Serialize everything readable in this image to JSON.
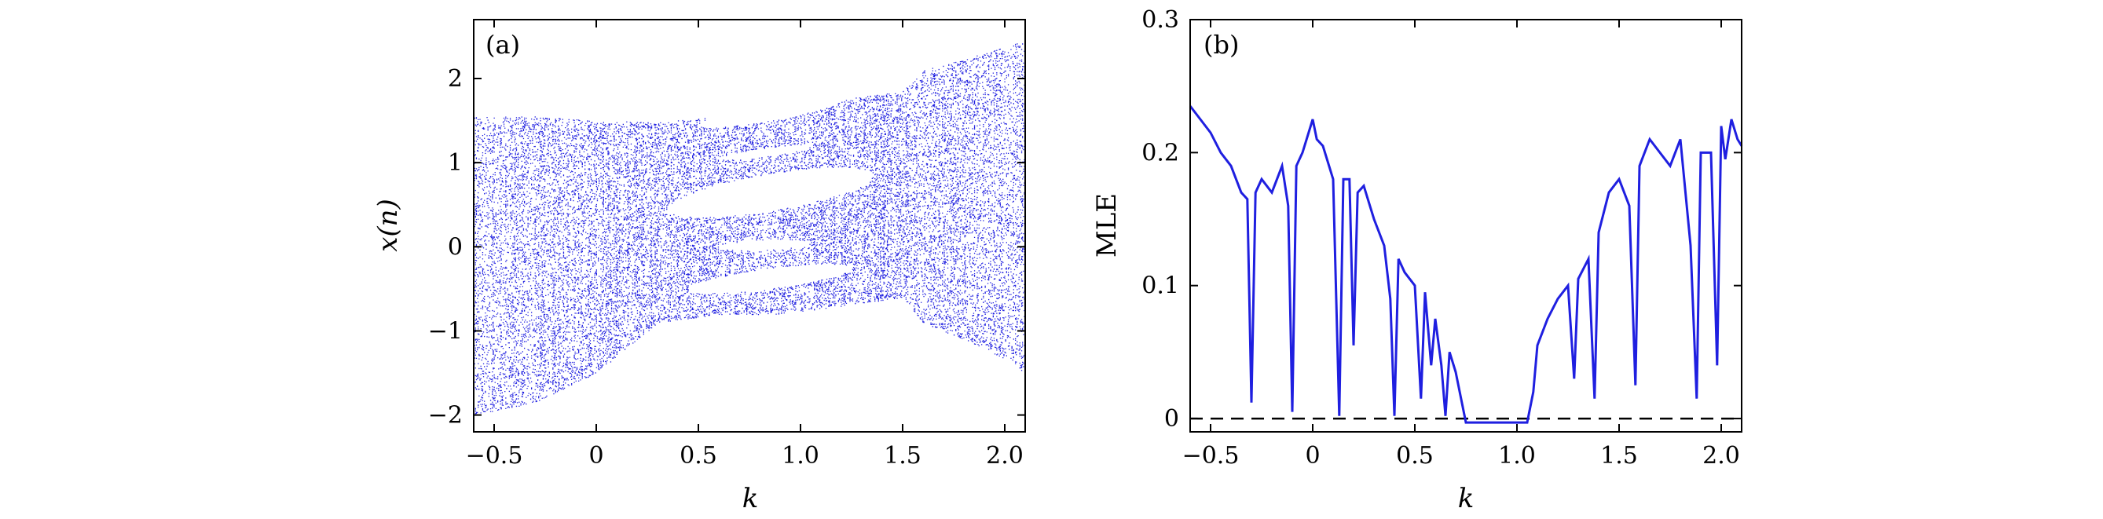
{
  "chart_data": [
    {
      "type": "scatter",
      "panel_label": "(a)",
      "title": "",
      "xlabel": "k",
      "ylabel": "x(n)",
      "xlim": [
        -0.6,
        2.1
      ],
      "ylim": [
        -2.2,
        2.7
      ],
      "xticks": [
        -0.5,
        0,
        0.5,
        1.0,
        1.5,
        2.0
      ],
      "xtick_labels": [
        "−0.5",
        "0",
        "0.5",
        "1.0",
        "1.5",
        "2.0"
      ],
      "yticks": [
        -2,
        -1,
        0,
        1,
        2
      ],
      "ytick_labels": [
        "−2",
        "−1",
        "0",
        "1",
        "2"
      ],
      "color": "#1f1fe0",
      "description_points": "bifurcation diagram: chaotic band between lower and upper envelopes with periodic windows",
      "envelope": {
        "k": [
          -0.6,
          -0.3,
          0.0,
          0.3,
          0.6,
          0.9,
          1.2,
          1.5,
          1.6,
          1.9,
          2.1
        ],
        "upper": [
          1.55,
          1.55,
          1.5,
          1.48,
          1.55,
          1.7,
          1.75,
          1.85,
          2.1,
          2.3,
          2.45
        ],
        "lower": [
          -2.0,
          -1.85,
          -1.5,
          -0.9,
          -0.8,
          -0.8,
          -0.7,
          -0.6,
          -0.9,
          -1.2,
          -1.5
        ]
      },
      "windows": [
        {
          "k_range": [
            0.35,
            1.35
          ],
          "center": [
            0.45,
            0.85
          ],
          "halfwidth": 0.22
        },
        {
          "k_range": [
            0.5,
            1.2
          ],
          "center": [
            1.45,
            1.75
          ],
          "halfwidth": 0.1
        },
        {
          "k_range": [
            0.6,
            1.05
          ],
          "center": [
            1.05,
            1.2
          ],
          "halfwidth": 0.05
        },
        {
          "k_range": [
            0.6,
            1.05
          ],
          "center": [
            0.0,
            0.05
          ],
          "halfwidth": 0.06
        },
        {
          "k_range": [
            0.45,
            1.25
          ],
          "center": [
            -0.5,
            -0.25
          ],
          "halfwidth": 0.12
        }
      ]
    },
    {
      "type": "line",
      "panel_label": "(b)",
      "title": "",
      "xlabel": "k",
      "ylabel": "MLE",
      "xlim": [
        -0.6,
        2.1
      ],
      "ylim": [
        -0.01,
        0.3
      ],
      "xticks": [
        -0.5,
        0,
        0.5,
        1.0,
        1.5,
        2.0
      ],
      "xtick_labels": [
        "−0.5",
        "0",
        "0.5",
        "1.0",
        "1.5",
        "2.0"
      ],
      "yticks": [
        0,
        0.1,
        0.2,
        0.3
      ],
      "ytick_labels": [
        "0",
        "0.1",
        "0.2",
        "0.3"
      ],
      "color": "#1f1fe0",
      "reference_line": {
        "y": 0,
        "style": "dashed",
        "color": "#000000"
      },
      "x": [
        -0.6,
        -0.55,
        -0.5,
        -0.45,
        -0.4,
        -0.35,
        -0.32,
        -0.3,
        -0.28,
        -0.25,
        -0.2,
        -0.15,
        -0.12,
        -0.1,
        -0.08,
        -0.05,
        0.0,
        0.02,
        0.05,
        0.1,
        0.13,
        0.15,
        0.18,
        0.2,
        0.22,
        0.25,
        0.3,
        0.35,
        0.38,
        0.4,
        0.42,
        0.45,
        0.5,
        0.53,
        0.55,
        0.58,
        0.6,
        0.63,
        0.65,
        0.67,
        0.7,
        0.75,
        0.8,
        0.9,
        1.0,
        1.05,
        1.08,
        1.1,
        1.15,
        1.2,
        1.25,
        1.28,
        1.3,
        1.35,
        1.38,
        1.4,
        1.45,
        1.5,
        1.55,
        1.58,
        1.6,
        1.65,
        1.7,
        1.75,
        1.8,
        1.85,
        1.88,
        1.9,
        1.95,
        1.98,
        2.0,
        2.02,
        2.05,
        2.08,
        2.1
      ],
      "y": [
        0.235,
        0.225,
        0.215,
        0.2,
        0.19,
        0.17,
        0.165,
        0.012,
        0.17,
        0.18,
        0.17,
        0.19,
        0.16,
        0.005,
        0.19,
        0.2,
        0.225,
        0.21,
        0.205,
        0.18,
        0.002,
        0.18,
        0.18,
        0.055,
        0.17,
        0.175,
        0.15,
        0.13,
        0.09,
        0.002,
        0.12,
        0.11,
        0.1,
        0.015,
        0.095,
        0.04,
        0.075,
        0.04,
        0.002,
        0.05,
        0.035,
        -0.003,
        -0.003,
        -0.003,
        -0.003,
        -0.003,
        0.02,
        0.055,
        0.075,
        0.09,
        0.1,
        0.03,
        0.105,
        0.12,
        0.015,
        0.14,
        0.17,
        0.18,
        0.16,
        0.025,
        0.19,
        0.21,
        0.2,
        0.19,
        0.21,
        0.13,
        0.015,
        0.2,
        0.2,
        0.04,
        0.22,
        0.195,
        0.225,
        0.21,
        0.205
      ]
    }
  ]
}
